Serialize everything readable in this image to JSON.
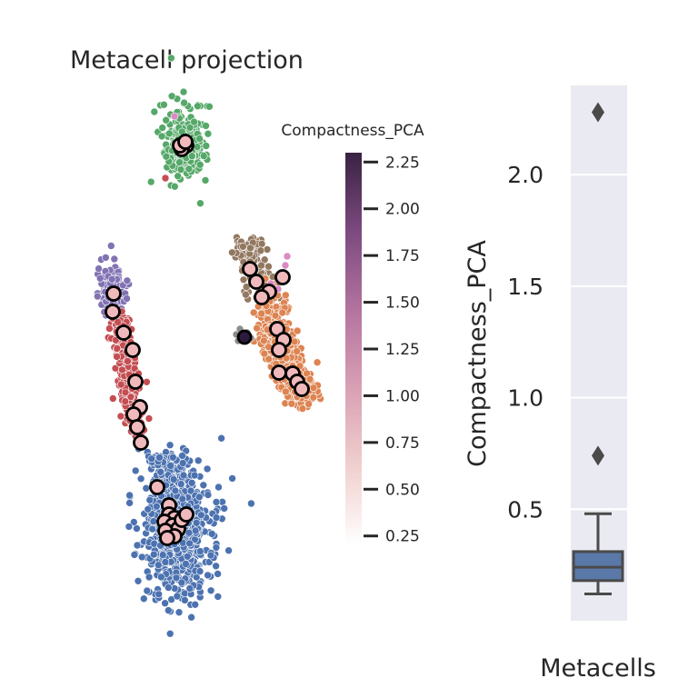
{
  "chart_data": [
    {
      "type": "scatter",
      "title": "Metacell projection",
      "xlabel": "",
      "ylabel": "",
      "colorbar": {
        "label": "Compactness_PCA",
        "range": [
          0.2,
          2.3
        ],
        "ticks": [
          0.25,
          0.5,
          0.75,
          1.0,
          1.25,
          1.5,
          1.75,
          2.0,
          2.25
        ],
        "tick_labels": [
          "0.25",
          "0.50",
          "0.75",
          "1.00",
          "1.25",
          "1.50",
          "1.75",
          "2.00",
          "2.25"
        ],
        "colormap": [
          "#ffffff",
          "#f0d0cf",
          "#d9a0b4",
          "#b3739f",
          "#7c4a7f",
          "#3a2243"
        ]
      },
      "cluster_colors": {
        "blue": "#4c72b0",
        "red": "#c44e52",
        "purple": "#8172b3",
        "green": "#55a868",
        "orange": "#dd8452",
        "brown": "#937860",
        "pink": "#da8bc3",
        "gray": "#8c8c8c"
      },
      "metacell_marker": {
        "face": "#f0b9bb",
        "edge": "#000000",
        "outlier_face": "#2d1a3d"
      }
    },
    {
      "type": "box",
      "xlabel": "Metacells",
      "ylabel": "Compactness_PCA",
      "ylim": [
        0.0,
        2.4
      ],
      "yticks": [
        0.5,
        1.0,
        1.5,
        2.0
      ],
      "ytick_labels": [
        "0.5",
        "1.0",
        "1.5",
        "2.0"
      ],
      "grid": true,
      "box": {
        "whisker_low": 0.12,
        "q1": 0.18,
        "median": 0.24,
        "q3": 0.31,
        "whisker_high": 0.48
      },
      "outliers": [
        0.74,
        2.28
      ],
      "box_color": "#5a78a8",
      "background": "#eaeaf2"
    }
  ]
}
